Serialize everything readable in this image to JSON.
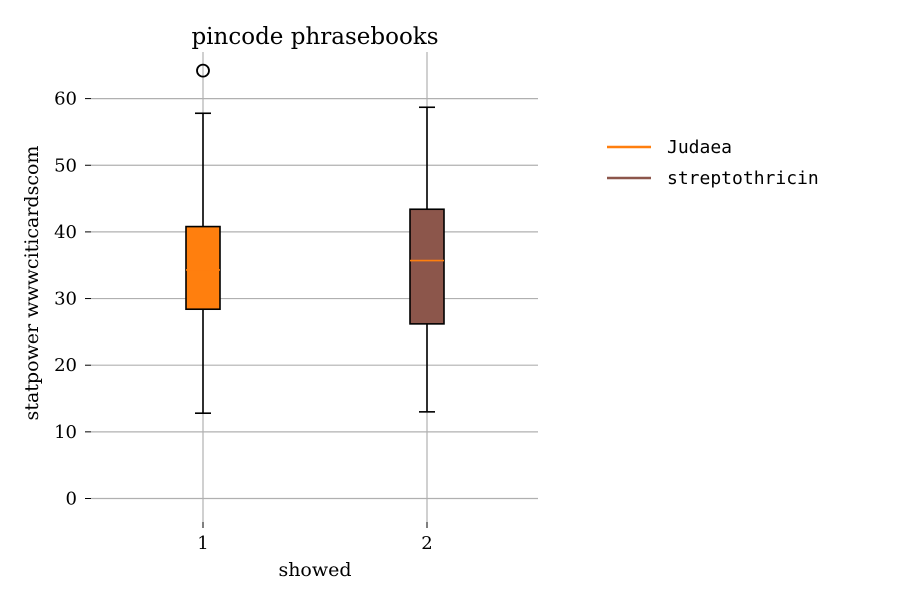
{
  "chart_data": {
    "type": "box",
    "title": "pincode phrasebooks",
    "xlabel": "showed",
    "ylabel": "statpower wwwciticardscom",
    "ylim": [
      -3.5,
      67
    ],
    "yticks": [
      0,
      10,
      20,
      30,
      40,
      50,
      60
    ],
    "categories": [
      "1",
      "2"
    ],
    "grid": true,
    "legend_position": "right",
    "series": [
      {
        "name": "Judaea",
        "color": "#ff7f0e",
        "median_color": "#ff7f0e",
        "whisker_low": 12.8,
        "q1": 28.4,
        "median": 34.3,
        "q3": 40.8,
        "whisker_high": 57.8,
        "outliers": [
          64.2
        ]
      },
      {
        "name": "streptothricin",
        "color": "#8c564b",
        "median_color": "#ff7f0e",
        "whisker_low": 13.0,
        "q1": 26.2,
        "median": 35.7,
        "q3": 43.4,
        "whisker_high": 58.7,
        "outliers": []
      }
    ]
  }
}
